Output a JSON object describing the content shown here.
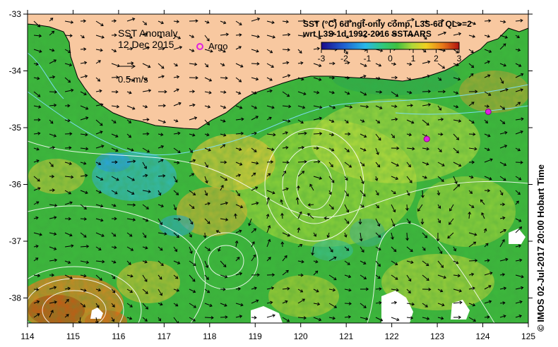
{
  "map": {
    "title": "SST Anomaly",
    "date": "12 Dec 2015",
    "scale_label": "0.5 m/s",
    "argo_label": "Argo",
    "colorbar_title_line1": "SST (°C) 6d ngt-only comp, L3S-6d QL>=2",
    "colorbar_title_line2": "wrt L3S-1d 1992-2016 SSTAARS",
    "colorbar_ticks": [
      "-3",
      "-2",
      "-1",
      "0",
      "1",
      "2",
      "3"
    ],
    "side_label": "©  IMOS 02-Jul-2017 20:00 Hobart Time",
    "lon_ticks": [
      "114",
      "115",
      "116",
      "117",
      "118",
      "119",
      "120",
      "121",
      "122",
      "123",
      "124",
      "125"
    ],
    "lat_ticks": [
      "-33",
      "-34",
      "-35",
      "-36",
      "-37",
      "-38"
    ],
    "colors": {
      "land": "#f8c8a0",
      "coast_outline": "#000000",
      "argo_marker": "#e020e0",
      "contour": "#ffffff",
      "coastal_contour": "#7fe0ff"
    },
    "argo_floats": [
      {
        "lon": 122.77,
        "lat": -35.2
      },
      {
        "lon": 124.12,
        "lat": -34.72
      }
    ]
  }
}
